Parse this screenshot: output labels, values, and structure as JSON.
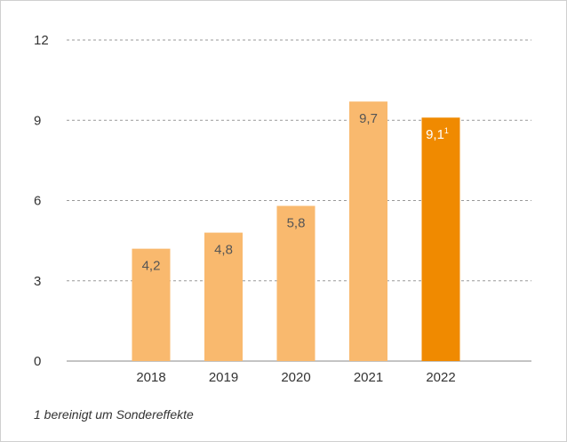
{
  "chart_data": {
    "type": "bar",
    "categories": [
      "2018",
      "2019",
      "2020",
      "2021",
      "2022"
    ],
    "values": [
      4.2,
      4.8,
      5.8,
      9.7,
      9.1
    ],
    "value_labels": [
      "4,2",
      "4,8",
      "5,8",
      "9,7",
      "9,1"
    ],
    "colors": [
      "#f9b96e",
      "#f9b96e",
      "#f9b96e",
      "#f9b96e",
      "#f08a00"
    ],
    "footnote_marker": "1",
    "footnote": "1 bereinigt um Sondereffekte",
    "ylim": [
      0,
      12
    ],
    "yticks": [
      0,
      3,
      6,
      9,
      12
    ],
    "grid": true
  }
}
